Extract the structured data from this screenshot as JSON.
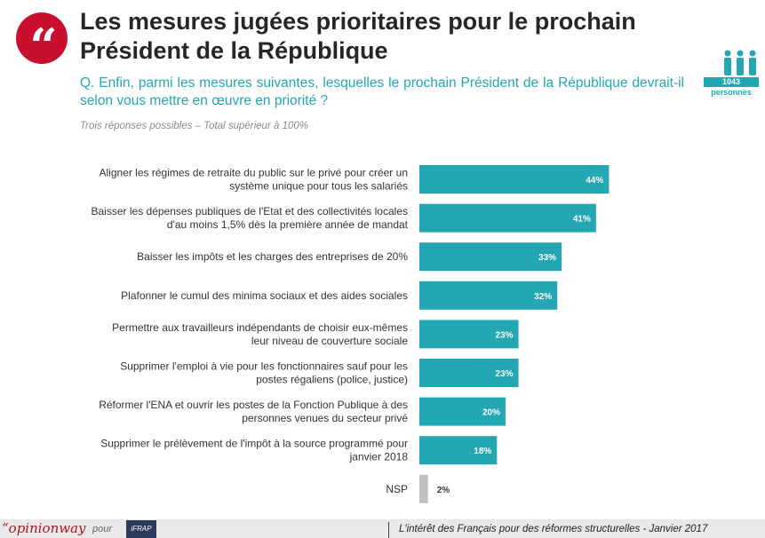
{
  "header": {
    "quote_glyph": "“",
    "title": "Les mesures jugées prioritaires pour le prochain Président de la République",
    "question": "Q. Enfin, parmi les mesures suivantes, lesquelles le prochain Président de la République devrait-il selon vous mettre en œuvre en priorité ?",
    "note": "Trois réponses possibles – Total supérieur à 100%"
  },
  "sample": {
    "count": "1043",
    "label": "personnes"
  },
  "colors": {
    "accent": "#22a7b3",
    "nsp": "#bfbfbf",
    "brand_red": "#c8102e"
  },
  "chart_data": {
    "type": "bar",
    "orientation": "horizontal",
    "categories": [
      [
        "Aligner les régimes de retraite du public sur le privé pour créer un",
        "système unique pour tous les salariés"
      ],
      [
        "Baisser les dépenses publiques de l'Etat et des collectivités locales",
        "d'au moins 1,5% dès la première année de mandat"
      ],
      [
        "Baisser les impôts et les charges des entreprises de 20%"
      ],
      [
        "Plafonner le cumul des minima sociaux et des aides sociales"
      ],
      [
        "Permettre aux travailleurs indépendants de choisir eux-mêmes",
        "leur niveau de couverture sociale"
      ],
      [
        "Supprimer l'emploi à vie pour les fonctionnaires sauf pour les",
        "postes régaliens (police, justice)"
      ],
      [
        "Réformer l'ENA et ouvrir les postes de la Fonction Publique à des",
        "personnes venues du secteur privé"
      ],
      [
        "Supprimer le prélèvement de l'impôt à la source programmé pour",
        "janvier 2018"
      ],
      [
        "NSP"
      ]
    ],
    "values": [
      44,
      41,
      33,
      32,
      23,
      23,
      20,
      18,
      2
    ],
    "value_labels": [
      "44%",
      "41%",
      "33%",
      "32%",
      "23%",
      "23%",
      "20%",
      "18%",
      "2%"
    ],
    "unit": "%",
    "xlim": [
      0,
      100
    ],
    "grid": false,
    "legend": "none"
  },
  "footer": {
    "brand": "“opinionway",
    "pour": "pour",
    "logo_text": "iFRAP",
    "text": "L'intérêt des Français pour des réformes structurelles - Janvier 2017"
  }
}
